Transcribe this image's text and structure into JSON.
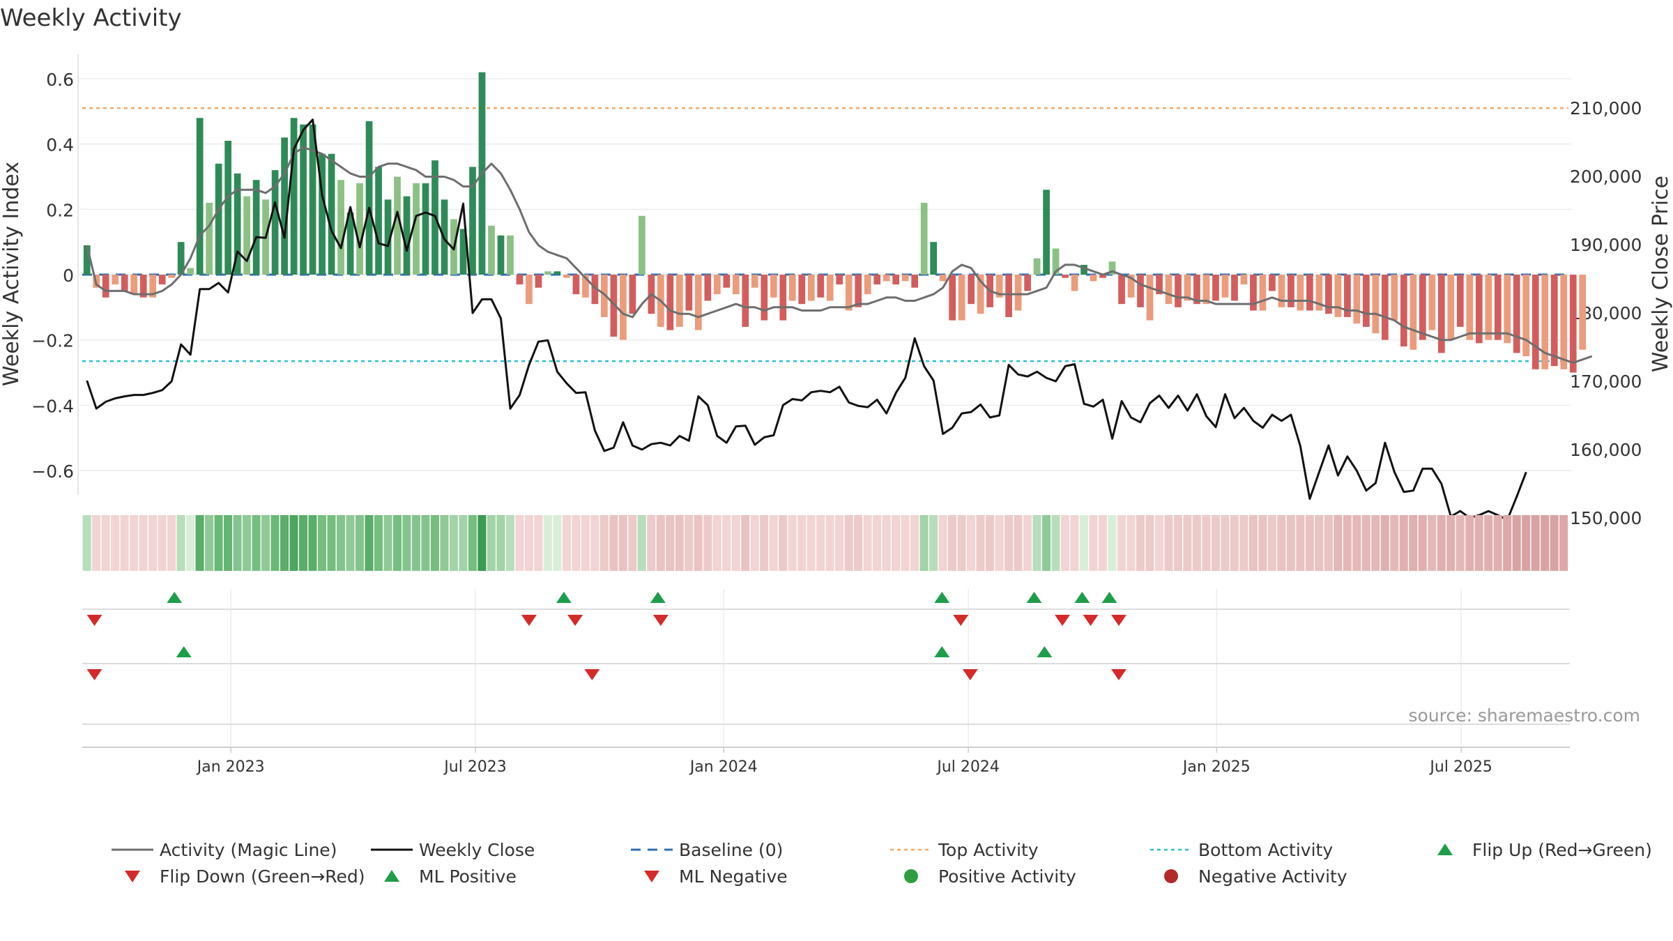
{
  "title": "Weekly Activity",
  "source": "source: sharemaestro.com",
  "colors": {
    "pos_dark": "#2e8b57",
    "pos_light": "#8cc084",
    "neg_dark": "#d35d5d",
    "neg_light": "#eb9c7c",
    "magic": "#6e6e6e",
    "close": "#111111",
    "baseline": "#2f6db0",
    "top": "#f0a868",
    "bottom": "#2bc0d0",
    "up": "#1e9e4a",
    "down": "#d52a2a"
  },
  "chart_data": {
    "type": "bar",
    "title": "Weekly Activity",
    "xlabel": "",
    "ylabel": "Weekly Activity Index",
    "y2label": "Weekly Close Price",
    "ylim": [
      -0.67,
      0.66
    ],
    "y2lim": [
      146000,
      210800
    ],
    "yticks": [
      0.6,
      0.4,
      0.2,
      0,
      -0.2,
      -0.4,
      -0.6
    ],
    "ytick_labels": [
      "0.6",
      "0.4",
      "0.2",
      "0",
      "−0.2",
      "−0.4",
      "−0.6"
    ],
    "y2ticks": [
      210000,
      200000,
      190000,
      180000,
      170000,
      160000,
      150000
    ],
    "y2tick_labels": [
      "210,000",
      "200,000",
      "190,000",
      "180,000",
      "170,000",
      "160,000",
      "150,000"
    ],
    "x_ticks": [
      {
        "label": "Jan 2023",
        "week": 15.3
      },
      {
        "label": "Jul 2023",
        "week": 41.3
      },
      {
        "label": "Jan 2024",
        "week": 67.7
      },
      {
        "label": "Jul 2024",
        "week": 93.7
      },
      {
        "label": "Jan 2025",
        "week": 120.1
      },
      {
        "label": "Jul 2025",
        "week": 146.1
      }
    ],
    "weeks": 158,
    "top_activity": 0.51,
    "bottom_activity": -0.265,
    "baseline": 0,
    "activity": [
      0.09,
      -0.04,
      -0.07,
      -0.03,
      -0.05,
      -0.06,
      -0.07,
      -0.07,
      -0.03,
      -0.01,
      0.1,
      0.02,
      0.48,
      0.22,
      0.34,
      0.41,
      0.31,
      0.24,
      0.29,
      0.23,
      0.32,
      0.42,
      0.48,
      0.46,
      0.46,
      0.37,
      0.37,
      0.29,
      0.19,
      0.28,
      0.47,
      0.33,
      0.23,
      0.3,
      0.24,
      0.28,
      0.28,
      0.35,
      0.23,
      0.17,
      0.14,
      0.33,
      0.62,
      0.15,
      0.12,
      0.12,
      -0.03,
      -0.09,
      -0.04,
      0.01,
      0.01,
      -0.01,
      -0.06,
      -0.07,
      -0.09,
      -0.13,
      -0.19,
      -0.2,
      -0.12,
      0.18,
      -0.12,
      -0.16,
      -0.17,
      -0.16,
      -0.11,
      -0.17,
      -0.08,
      -0.06,
      -0.04,
      -0.06,
      -0.16,
      -0.04,
      -0.14,
      -0.07,
      -0.14,
      -0.08,
      -0.09,
      -0.08,
      -0.07,
      -0.08,
      -0.03,
      -0.11,
      -0.1,
      -0.06,
      -0.03,
      -0.02,
      -0.03,
      -0.02,
      -0.04,
      0.22,
      0.1,
      -0.02,
      -0.14,
      -0.14,
      -0.09,
      -0.12,
      -0.1,
      -0.07,
      -0.13,
      -0.11,
      -0.05,
      0.05,
      0.26,
      0.08,
      -0.01,
      -0.05,
      0.03,
      -0.02,
      -0.01,
      0.04,
      -0.09,
      -0.07,
      -0.1,
      -0.14,
      -0.06,
      -0.09,
      -0.1,
      -0.08,
      -0.09,
      -0.09,
      -0.08,
      -0.07,
      -0.08,
      -0.03,
      -0.11,
      -0.11,
      -0.05,
      -0.1,
      -0.1,
      -0.11,
      -0.11,
      -0.11,
      -0.12,
      -0.13,
      -0.13,
      -0.15,
      -0.16,
      -0.18,
      -0.2,
      -0.14,
      -0.22,
      -0.23,
      -0.2,
      -0.17,
      -0.24,
      -0.2,
      -0.16,
      -0.2,
      -0.21,
      -0.2,
      -0.2,
      -0.21,
      -0.24,
      -0.25,
      -0.29,
      -0.29,
      -0.28,
      -0.29,
      -0.3,
      -0.23
    ],
    "magic_line": [
      0.09,
      -0.03,
      -0.05,
      -0.05,
      -0.05,
      -0.06,
      -0.06,
      -0.06,
      -0.05,
      -0.03,
      0.0,
      0.05,
      0.12,
      0.15,
      0.2,
      0.24,
      0.26,
      0.26,
      0.26,
      0.25,
      0.27,
      0.31,
      0.37,
      0.39,
      0.38,
      0.37,
      0.35,
      0.33,
      0.31,
      0.3,
      0.3,
      0.33,
      0.34,
      0.34,
      0.33,
      0.32,
      0.3,
      0.3,
      0.3,
      0.29,
      0.27,
      0.27,
      0.31,
      0.34,
      0.31,
      0.26,
      0.2,
      0.13,
      0.09,
      0.07,
      0.06,
      0.05,
      0.02,
      -0.01,
      -0.04,
      -0.06,
      -0.09,
      -0.12,
      -0.13,
      -0.09,
      -0.06,
      -0.08,
      -0.11,
      -0.12,
      -0.12,
      -0.13,
      -0.12,
      -0.11,
      -0.1,
      -0.09,
      -0.1,
      -0.1,
      -0.11,
      -0.1,
      -0.1,
      -0.1,
      -0.11,
      -0.11,
      -0.11,
      -0.1,
      -0.1,
      -0.1,
      -0.09,
      -0.09,
      -0.08,
      -0.07,
      -0.07,
      -0.08,
      -0.08,
      -0.07,
      -0.06,
      -0.04,
      0.01,
      0.03,
      0.02,
      -0.02,
      -0.05,
      -0.06,
      -0.06,
      -0.06,
      -0.06,
      -0.05,
      -0.04,
      0.01,
      0.03,
      0.03,
      0.02,
      0.01,
      0.0,
      0.01,
      0.0,
      -0.01,
      -0.03,
      -0.04,
      -0.05,
      -0.06,
      -0.07,
      -0.07,
      -0.08,
      -0.08,
      -0.09,
      -0.09,
      -0.09,
      -0.09,
      -0.09,
      -0.08,
      -0.07,
      -0.08,
      -0.08,
      -0.08,
      -0.08,
      -0.09,
      -0.1,
      -0.1,
      -0.11,
      -0.11,
      -0.12,
      -0.12,
      -0.13,
      -0.14,
      -0.16,
      -0.17,
      -0.18,
      -0.19,
      -0.2,
      -0.2,
      -0.19,
      -0.18,
      -0.18,
      -0.18,
      -0.18,
      -0.18,
      -0.19,
      -0.2,
      -0.22,
      -0.24,
      -0.25,
      -0.26,
      -0.27,
      -0.26,
      -0.25
    ],
    "weekly_close": [
      170100,
      166000,
      167000,
      167500,
      167800,
      168000,
      168000,
      168300,
      168700,
      170000,
      175400,
      173900,
      183500,
      183500,
      184400,
      183000,
      189000,
      187600,
      191100,
      191000,
      196200,
      191000,
      204000,
      206800,
      208300,
      197200,
      192000,
      189500,
      195500,
      189600,
      195400,
      190200,
      189800,
      194800,
      189100,
      194200,
      194700,
      194200,
      190800,
      189300,
      196000,
      180000,
      182000,
      182000,
      179200,
      166000,
      168000,
      172400,
      175800,
      176000,
      171400,
      169700,
      168300,
      168400,
      162800,
      159800,
      160300,
      164000,
      160600,
      160000,
      160800,
      161000,
      160600,
      162000,
      161300,
      167800,
      166500,
      162000,
      161000,
      163400,
      163500,
      160700,
      161800,
      162100,
      166500,
      167400,
      167200,
      168400,
      168600,
      168400,
      169200,
      166900,
      166400,
      166200,
      167300,
      165300,
      168300,
      170500,
      176300,
      172200,
      170100,
      162300,
      163200,
      165300,
      165500,
      166600,
      164700,
      165000,
      172400,
      171000,
      170700,
      171400,
      170500,
      170000,
      172200,
      172500,
      166700,
      166300,
      167300,
      161600,
      167100,
      164700,
      164000,
      166800,
      167900,
      166100,
      167900,
      165700,
      168100,
      164900,
      163300,
      168100,
      164600,
      166100,
      164200,
      163200,
      165100,
      164200,
      165100,
      160500,
      152800,
      156700,
      160600,
      156200,
      159000,
      156900,
      154000,
      155100,
      161000,
      156700,
      153800,
      154000,
      157200,
      157200,
      155000,
      150200,
      151000,
      150000,
      150400,
      151000,
      150400,
      149700,
      153100,
      156700
    ],
    "strip_colors": [
      "#b8ddbc",
      "#f2d4d4",
      "#f2d4d4",
      "#f2d4d4",
      "#f2d4d4",
      "#f2d4d4",
      "#f2d4d4",
      "#f2d4d4",
      "#f2d4d4",
      "#f2d4d4",
      "#b8ddbc",
      "#d9eed9",
      "#5aad6a",
      "#8fc997",
      "#6ab877",
      "#64b572",
      "#85c38e",
      "#8fc997",
      "#76bd80",
      "#8fc997",
      "#6ab877",
      "#5aad6a",
      "#4ca660",
      "#5aad6a",
      "#5aad6a",
      "#76bd80",
      "#76bd80",
      "#85c38e",
      "#8fc997",
      "#85c38e",
      "#5aad6a",
      "#76bd80",
      "#8fc997",
      "#76bd80",
      "#85c38e",
      "#85c38e",
      "#85c38e",
      "#76bd80",
      "#8fc997",
      "#a3d3a8",
      "#a3d3a8",
      "#76bd80",
      "#3c9a52",
      "#a3d3a8",
      "#a3d3a8",
      "#b8ddbc",
      "#f2d4d4",
      "#f2d4d4",
      "#f2d4d4",
      "#d9eed9",
      "#d9eed9",
      "#f2d4d4",
      "#f2d4d4",
      "#f2d4d4",
      "#f2d4d4",
      "#eccaca",
      "#e9c2c2",
      "#e9c2c2",
      "#eccaca",
      "#b8ddbc",
      "#eccaca",
      "#e9c2c2",
      "#e9c2c2",
      "#e9c2c2",
      "#eccaca",
      "#e9c2c2",
      "#eccaca",
      "#f2d4d4",
      "#f2d4d4",
      "#f2d4d4",
      "#e9c2c2",
      "#f2d4d4",
      "#eccaca",
      "#f2d4d4",
      "#eccaca",
      "#f2d4d4",
      "#f2d4d4",
      "#f2d4d4",
      "#f2d4d4",
      "#f2d4d4",
      "#f2d4d4",
      "#eccaca",
      "#eccaca",
      "#f2d4d4",
      "#f2d4d4",
      "#f2d4d4",
      "#f2d4d4",
      "#f2d4d4",
      "#f2d4d4",
      "#a3d3a8",
      "#b8ddbc",
      "#f2d4d4",
      "#eccaca",
      "#eccaca",
      "#f2d4d4",
      "#eccaca",
      "#eccaca",
      "#f2d4d4",
      "#eccaca",
      "#eccaca",
      "#f2d4d4",
      "#b8ddbc",
      "#8fc997",
      "#b8ddbc",
      "#f2d4d4",
      "#f2d4d4",
      "#d9eed9",
      "#f2d4d4",
      "#f2d4d4",
      "#d9eed9",
      "#f2d4d4",
      "#f2d4d4",
      "#eccaca",
      "#eccaca",
      "#f2d4d4",
      "#eccaca",
      "#eccaca",
      "#eccaca",
      "#eccaca",
      "#eccaca",
      "#eccaca",
      "#eccaca",
      "#eccaca",
      "#eccaca",
      "#e9c2c2",
      "#e9c2c2",
      "#eccaca",
      "#e9c2c2",
      "#e9c2c2",
      "#e9c2c2",
      "#e9c2c2",
      "#e9c2c2",
      "#e9c2c2",
      "#e4b8b8",
      "#e4b8b8",
      "#e4b8b8",
      "#e4b8b8",
      "#e4b8b8",
      "#e0b0b0",
      "#e4b8b8",
      "#e0b0b0",
      "#e0b0b0",
      "#e0b0b0",
      "#e4b8b8",
      "#e0b0b0",
      "#e0b0b0",
      "#e4b8b8",
      "#e0b0b0",
      "#e0b0b0",
      "#e0b0b0",
      "#e0b0b0",
      "#dca8a8",
      "#d9a3a3",
      "#d9a3a3",
      "#d9a3a3",
      "#d9a3a3",
      "#d9a3a3",
      "#dca8a8"
    ],
    "flip_up_weeks": [
      9.3,
      50.7,
      60.7,
      90.9,
      100.7,
      105.8,
      108.7
    ],
    "flip_down_weeks": [
      0.8,
      47.0,
      51.9,
      61.0,
      92.9,
      103.7,
      106.7,
      109.7
    ],
    "ml_positive_weeks": [
      10.3,
      90.9,
      101.8
    ],
    "ml_negative_weeks": [
      0.8,
      53.7,
      93.9,
      109.7
    ],
    "legend": [
      {
        "label": "Activity (Magic Line)",
        "kind": "line-gray"
      },
      {
        "label": "Weekly Close",
        "kind": "line-black"
      },
      {
        "label": "Baseline (0)",
        "kind": "dash-blue"
      },
      {
        "label": "Top Activity",
        "kind": "dot-orange"
      },
      {
        "label": "Bottom Activity",
        "kind": "dot-cyan"
      },
      {
        "label": "Flip Up (Red→Green)",
        "kind": "tri-up"
      },
      {
        "label": "Flip Down (Green→Red)",
        "kind": "tri-down"
      },
      {
        "label": "ML Positive",
        "kind": "tri-up"
      },
      {
        "label": "ML Negative",
        "kind": "tri-down"
      },
      {
        "label": "Positive Activity",
        "kind": "circle-green"
      },
      {
        "label": "Negative Activity",
        "kind": "circle-red"
      }
    ]
  }
}
